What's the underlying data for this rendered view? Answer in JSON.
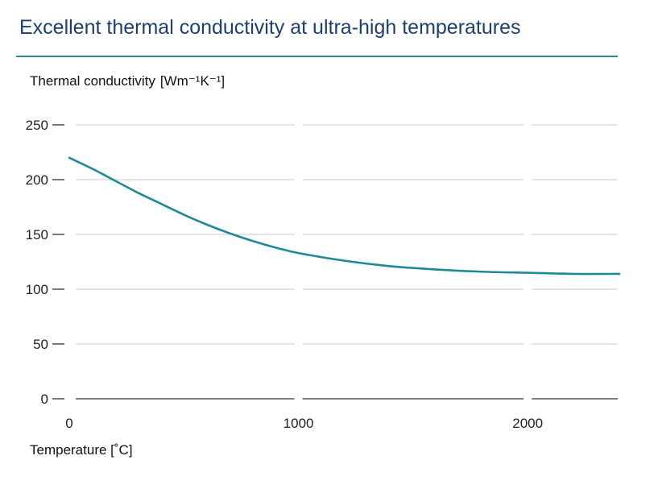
{
  "header": {
    "title": "Excellent thermal conductivity at ultra-high temperatures"
  },
  "chart_data": {
    "type": "line",
    "title": "Excellent thermal conductivity at ultra-high temperatures",
    "ylabel": "Thermal conductivity",
    "ylabel_unit": "[Wm⁻¹K⁻¹]",
    "xlabel": "Temperature [˚C]",
    "xlim": [
      0,
      2400
    ],
    "ylim": [
      0,
      250
    ],
    "yticks": [
      0,
      50,
      100,
      150,
      200,
      250
    ],
    "xticks": [
      0,
      1000,
      2000
    ],
    "grid": true,
    "colors": {
      "line": "#1e8a97",
      "grid": "#c8c8c8",
      "axis": "#333333"
    },
    "series": [
      {
        "x": [
          0,
          100,
          200,
          300,
          400,
          500,
          600,
          700,
          800,
          900,
          1000,
          1200,
          1400,
          1600,
          1800,
          2000,
          2200,
          2400
        ],
        "values": [
          220,
          210,
          199,
          188,
          178,
          168,
          159,
          151,
          144,
          138,
          133,
          126,
          121,
          118,
          116,
          115,
          114,
          114
        ]
      }
    ]
  }
}
